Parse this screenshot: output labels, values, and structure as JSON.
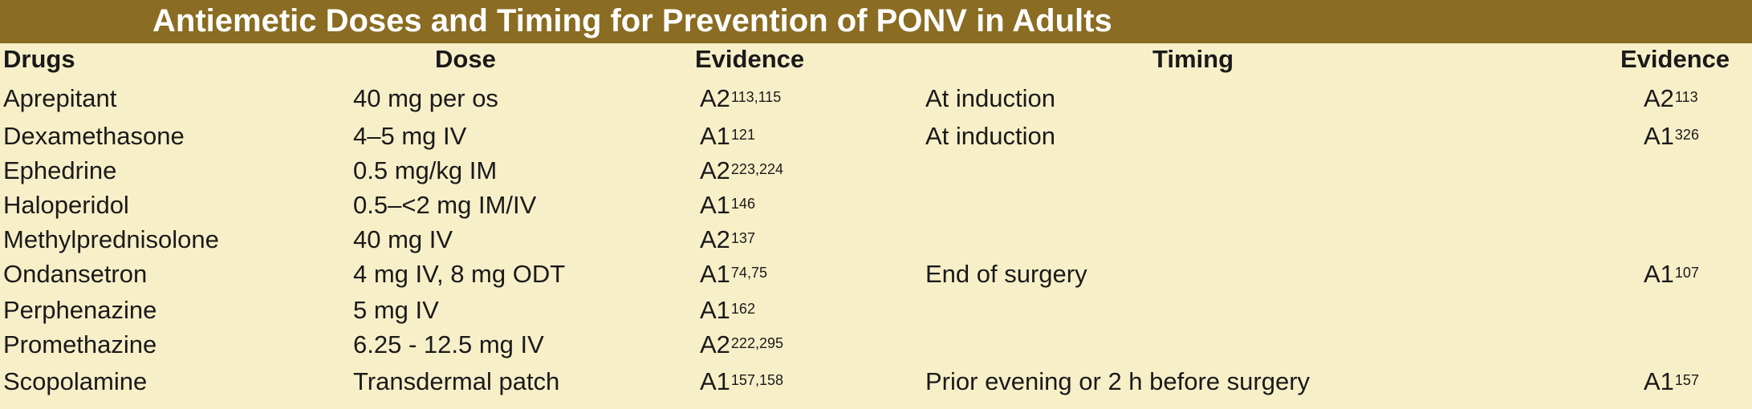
{
  "title": "Antiemetic Doses and Timing for Prevention of PONV in Adults",
  "headers": {
    "drugs": "Drugs",
    "dose": "Dose",
    "evidence1": "Evidence",
    "timing": "Timing",
    "evidence2": "Evidence"
  },
  "rows": [
    {
      "drug": "Aprepitant",
      "dose": "40 mg per os",
      "ev": "A2",
      "ev_ref": "113,115",
      "timing": "At induction",
      "ev2": "A2",
      "ev2_ref": "113"
    },
    {
      "drug": "Dexamethasone",
      "dose": "4–5 mg IV",
      "ev": "A1",
      "ev_ref": "121",
      "timing": "At induction",
      "ev2": "A1",
      "ev2_ref": "326"
    },
    {
      "drug": "Ephedrine",
      "dose": "0.5 mg/kg IM",
      "ev": "A2",
      "ev_ref": "223,224",
      "timing": "",
      "ev2": "",
      "ev2_ref": ""
    },
    {
      "drug": "Haloperidol",
      "dose": "0.5–<2 mg IM/IV",
      "ev": "A1",
      "ev_ref": "146",
      "timing": "",
      "ev2": "",
      "ev2_ref": ""
    },
    {
      "drug": "Methylprednisolone",
      "dose": "40 mg IV",
      "ev": "A2",
      "ev_ref": "137",
      "timing": "",
      "ev2": "",
      "ev2_ref": ""
    },
    {
      "drug": "Ondansetron",
      "dose": "4 mg IV, 8 mg ODT",
      "ev": "A1",
      "ev_ref": "74,75",
      "timing": "End of surgery",
      "ev2": "A1",
      "ev2_ref": "107"
    },
    {
      "drug": "Perphenazine",
      "dose": "5 mg IV",
      "ev": "A1",
      "ev_ref": "162",
      "timing": "",
      "ev2": "",
      "ev2_ref": ""
    },
    {
      "drug": "Promethazine",
      "dose": "6.25 - 12.5 mg IV",
      "ev": "A2",
      "ev_ref": "222,295",
      "timing": "",
      "ev2": "",
      "ev2_ref": ""
    },
    {
      "drug": "Scopolamine",
      "dose": "Transdermal patch",
      "ev": "A1",
      "ev_ref": "157,158",
      "timing": "Prior evening or 2 h before surgery",
      "ev2": "A1",
      "ev2_ref": "157"
    }
  ],
  "colors": {
    "title_bar": "#8a6c22",
    "background": "#f7efc8",
    "text": "#1a1a1a"
  }
}
